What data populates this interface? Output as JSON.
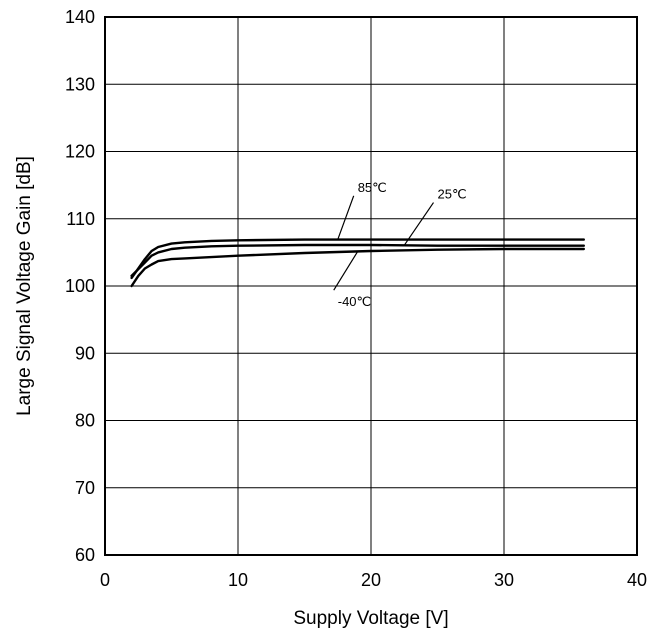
{
  "chart_data": {
    "type": "line",
    "title": "",
    "xlabel": "Supply Voltage [V]",
    "ylabel": "Large Signal Voltage Gain [dB]",
    "xlim": [
      0,
      40
    ],
    "ylim": [
      60,
      140
    ],
    "xticks": [
      0,
      10,
      20,
      30,
      40
    ],
    "yticks": [
      60,
      70,
      80,
      90,
      100,
      110,
      120,
      130,
      140
    ],
    "grid": true,
    "legend": "none",
    "series": [
      {
        "name": "85℃",
        "x": [
          2,
          2.5,
          3,
          3.5,
          4,
          5,
          6,
          8,
          10,
          15,
          20,
          25,
          30,
          33,
          36
        ],
        "y": [
          101.2,
          102.6,
          104.0,
          105.2,
          105.8,
          106.3,
          106.5,
          106.7,
          106.8,
          106.9,
          106.9,
          106.9,
          106.9,
          106.9,
          106.9
        ]
      },
      {
        "name": "25℃",
        "x": [
          2,
          2.5,
          3,
          3.5,
          4,
          5,
          6,
          8,
          10,
          15,
          20,
          25,
          30,
          33,
          36
        ],
        "y": [
          101.5,
          102.5,
          103.5,
          104.5,
          105.0,
          105.5,
          105.7,
          105.9,
          106.0,
          106.1,
          106.1,
          106.0,
          106.0,
          106.0,
          106.0
        ]
      },
      {
        "name": "-40℃",
        "x": [
          2,
          2.5,
          3,
          3.5,
          4,
          5,
          6,
          8,
          10,
          15,
          20,
          25,
          30,
          33,
          36
        ],
        "y": [
          100.0,
          101.5,
          102.6,
          103.2,
          103.7,
          104.0,
          104.1,
          104.3,
          104.5,
          104.9,
          105.2,
          105.4,
          105.5,
          105.5,
          105.5
        ]
      }
    ],
    "annotations": [
      {
        "text": "85℃",
        "series": 0,
        "at_x": 17.5,
        "label_x": 19,
        "label_y": 114
      },
      {
        "text": "25℃",
        "series": 1,
        "at_x": 22.5,
        "label_x": 25,
        "label_y": 113
      },
      {
        "text": "-40℃",
        "series": 2,
        "at_x": 19,
        "label_x": 17.5,
        "label_y": 97
      }
    ]
  }
}
